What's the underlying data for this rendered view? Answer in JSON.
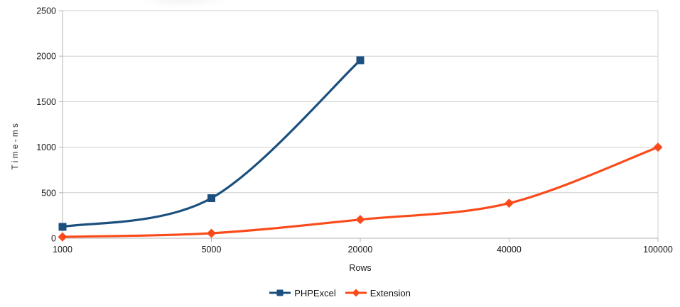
{
  "chart_data": {
    "type": "line",
    "title": "",
    "xlabel": "Rows",
    "ylabel": "Time-ms",
    "categories": [
      "1000",
      "5000",
      "20000",
      "40000",
      "100000"
    ],
    "series": [
      {
        "name": "PHPExcel",
        "color": "#1B4F7E",
        "marker": "square",
        "values": [
          125,
          440,
          1955,
          null,
          null
        ]
      },
      {
        "name": "Extension",
        "color": "#FB4A1A",
        "marker": "diamond",
        "values": [
          15,
          55,
          205,
          385,
          1000
        ]
      }
    ],
    "ylim": [
      0,
      2500
    ],
    "yticks": [
      0,
      500,
      1000,
      1500,
      2000,
      2500
    ],
    "ytick_step": 500,
    "grid": true,
    "smooth": true,
    "legend_position": "bottom"
  },
  "style": {
    "background": "#ffffff",
    "gridline_color": "#cfcfcf",
    "axis_color": "#b3b3b3",
    "text_color": "#1a1a1a"
  }
}
